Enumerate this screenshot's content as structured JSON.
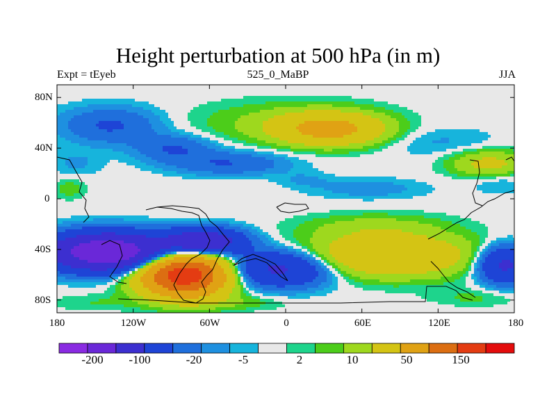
{
  "chart_data": {
    "type": "heatmap",
    "title": "Height perturbation at 500 hPa (in m)",
    "subtitle_left": "Expt = tEyeb",
    "subtitle_center": "525_0_MaBP",
    "subtitle_right": "JJA",
    "x_range": [
      -180,
      180
    ],
    "y_range": [
      -90,
      90
    ],
    "x_ticks": [
      {
        "value": -180,
        "label": "180"
      },
      {
        "value": -120,
        "label": "120W"
      },
      {
        "value": -60,
        "label": "60W"
      },
      {
        "value": 0,
        "label": "0"
      },
      {
        "value": 60,
        "label": "60E"
      },
      {
        "value": 120,
        "label": "120E"
      },
      {
        "value": 180,
        "label": "180"
      }
    ],
    "y_ticks": [
      {
        "value": 80,
        "label": "80N"
      },
      {
        "value": 40,
        "label": "40N"
      },
      {
        "value": 0,
        "label": "0"
      },
      {
        "value": -40,
        "label": "40S"
      },
      {
        "value": -80,
        "label": "80S"
      }
    ],
    "colorbar": {
      "colors": [
        "#8a2be2",
        "#6a28d8",
        "#3c2fd0",
        "#1e44d6",
        "#1f6fdc",
        "#1e90e0",
        "#17b4dc",
        "#e8e8e8",
        "#1ed48c",
        "#4ccd1a",
        "#9ed81e",
        "#d4c414",
        "#e0a214",
        "#dc6e12",
        "#e43c12",
        "#e40c0c"
      ],
      "labels": [
        {
          "index": 1,
          "text": "-200"
        },
        {
          "index": 3,
          "text": "-100"
        },
        {
          "index": 5,
          "text": "-20"
        },
        {
          "index": 7,
          "text": "-5"
        },
        {
          "index": 9,
          "text": "2"
        },
        {
          "index": 11,
          "text": "10"
        },
        {
          "index": 13,
          "text": "50"
        },
        {
          "index": 15,
          "text": "150"
        }
      ]
    },
    "field_blobs": [
      {
        "lon": -138,
        "lat": 58,
        "rlon": 38,
        "rlat": 14,
        "amp": -22
      },
      {
        "lon": -88,
        "lat": 40,
        "rlon": 30,
        "rlat": 10,
        "amp": -20
      },
      {
        "lon": -165,
        "lat": 28,
        "rlon": 20,
        "rlat": 10,
        "amp": -6
      },
      {
        "lon": -45,
        "lat": 28,
        "rlon": 45,
        "rlat": 9,
        "amp": -20
      },
      {
        "lon": 35,
        "lat": 55,
        "rlon": 40,
        "rlat": 12,
        "amp": 60
      },
      {
        "lon": 0,
        "lat": 60,
        "rlon": 70,
        "rlat": 16,
        "amp": 12
      },
      {
        "lon": 120,
        "lat": 45,
        "rlon": 45,
        "rlat": 12,
        "amp": -6
      },
      {
        "lon": 160,
        "lat": 28,
        "rlon": 30,
        "rlat": 10,
        "amp": 25
      },
      {
        "lon": 168,
        "lat": 12,
        "rlon": 20,
        "rlat": 8,
        "amp": -6
      },
      {
        "lon": 65,
        "lat": 8,
        "rlon": 45,
        "rlat": 8,
        "amp": -8
      },
      {
        "lon": 15,
        "lat": 15,
        "rlon": 20,
        "rlat": 6,
        "amp": -5
      },
      {
        "lon": -170,
        "lat": 8,
        "rlon": 12,
        "rlat": 8,
        "amp": 8
      },
      {
        "lon": -140,
        "lat": -42,
        "rlon": 45,
        "rlat": 14,
        "amp": -150
      },
      {
        "lon": -65,
        "lat": -34,
        "rlon": 30,
        "rlat": 10,
        "amp": -90
      },
      {
        "lon": -5,
        "lat": -55,
        "rlon": 40,
        "rlat": 14,
        "amp": -60
      },
      {
        "lon": -80,
        "lat": -60,
        "rlon": 32,
        "rlat": 16,
        "amp": 190
      },
      {
        "lon": 80,
        "lat": -45,
        "rlon": 65,
        "rlat": 16,
        "amp": 50
      },
      {
        "lon": 70,
        "lat": -22,
        "rlon": 55,
        "rlat": 10,
        "amp": 12
      },
      {
        "lon": 172,
        "lat": -52,
        "rlon": 20,
        "rlat": 14,
        "amp": -60
      },
      {
        "lon": 150,
        "lat": -78,
        "rlon": 35,
        "rlat": 7,
        "amp": 6
      },
      {
        "lon": -150,
        "lat": -82,
        "rlon": 35,
        "rlat": 7,
        "amp": 5
      },
      {
        "lon": -40,
        "lat": -82,
        "rlon": 40,
        "rlat": 6,
        "amp": 8
      }
    ]
  }
}
